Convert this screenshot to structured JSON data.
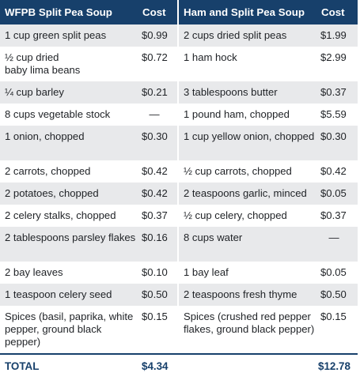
{
  "header": {
    "left_title": "WFPB Split Pea Soup",
    "left_cost": "Cost",
    "right_title": "Ham and Split Pea Soup",
    "right_cost": "Cost"
  },
  "rows": [
    {
      "l_item": "1 cup green split peas",
      "l_cost": "$0.99",
      "r_item": "2 cups dried split peas",
      "r_cost": "$1.99"
    },
    {
      "l_item": "½ cup dried\nbaby lima beans",
      "l_cost": "$0.72",
      "r_item": "1 ham hock",
      "r_cost": "$2.99"
    },
    {
      "l_item": "¼ cup barley",
      "l_cost": "$0.21",
      "r_item": "3 tablespoons butter",
      "r_cost": "$0.37"
    },
    {
      "l_item": "8 cups vegetable stock",
      "l_cost": "—",
      "r_item": "1 pound ham, chopped",
      "r_cost": "$5.59"
    },
    {
      "l_item": "1 onion, chopped",
      "l_cost": "$0.30",
      "r_item": "1 cup yellow onion, chopped",
      "r_cost": "$0.30"
    },
    {
      "l_item": "2 carrots, chopped",
      "l_cost": "$0.42",
      "r_item": "½ cup carrots, chopped",
      "r_cost": "$0.42"
    },
    {
      "l_item": "2 potatoes, chopped",
      "l_cost": "$0.42",
      "r_item": "2 teaspoons garlic, minced",
      "r_cost": "$0.05"
    },
    {
      "l_item": "2 celery stalks, chopped",
      "l_cost": "$0.37",
      "r_item": "½ cup celery, chopped",
      "r_cost": "$0.37"
    },
    {
      "l_item": "2 tablespoons parsley flakes",
      "l_cost": "$0.16",
      "r_item": "8 cups water",
      "r_cost": "—"
    },
    {
      "l_item": "2 bay leaves",
      "l_cost": "$0.10",
      "r_item": "1 bay leaf",
      "r_cost": "$0.05"
    },
    {
      "l_item": "1 teaspoon celery seed",
      "l_cost": "$0.50",
      "r_item": "2 teaspoons fresh thyme",
      "r_cost": "$0.50"
    },
    {
      "l_item": "Spices (basil, paprika, white pepper, ground black pepper)",
      "l_cost": "$0.15",
      "r_item": "Spices (crushed red pepper flakes, ground black pepper)",
      "r_cost": "$0.15"
    }
  ],
  "footer": {
    "total_label": "TOTAL",
    "left_total": "$4.34",
    "right_total": "$12.78"
  },
  "colors": {
    "header_bg": "#17406b",
    "stripe_bg": "#e8e9eb",
    "total_text": "#17406b"
  }
}
